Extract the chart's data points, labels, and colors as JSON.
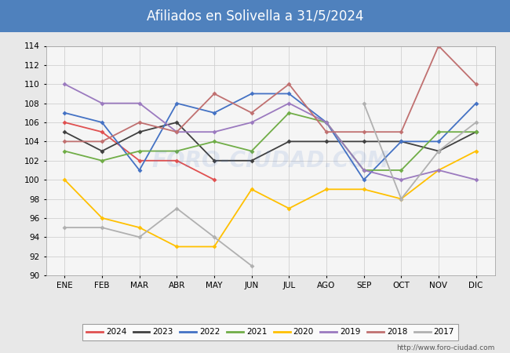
{
  "title": "Afiliados en Solivella a 31/5/2024",
  "title_bg_color": "#4f81bd",
  "title_text_color": "#ffffff",
  "ylim": [
    90,
    114
  ],
  "yticks": [
    90,
    92,
    94,
    96,
    98,
    100,
    102,
    104,
    106,
    108,
    110,
    112,
    114
  ],
  "months": [
    "ENE",
    "FEB",
    "MAR",
    "ABR",
    "MAY",
    "JUN",
    "JUL",
    "AGO",
    "SEP",
    "OCT",
    "NOV",
    "DIC"
  ],
  "series": {
    "2024": {
      "color": "#e05050",
      "data": [
        106,
        105,
        102,
        102,
        100,
        null,
        null,
        null,
        null,
        null,
        null,
        null
      ]
    },
    "2023": {
      "color": "#404040",
      "data": [
        105,
        103,
        105,
        106,
        102,
        102,
        104,
        104,
        104,
        104,
        103,
        105
      ]
    },
    "2022": {
      "color": "#4472c4",
      "data": [
        107,
        106,
        101,
        108,
        107,
        109,
        109,
        106,
        100,
        104,
        104,
        108
      ]
    },
    "2021": {
      "color": "#70ad47",
      "data": [
        103,
        102,
        103,
        103,
        104,
        103,
        107,
        106,
        101,
        101,
        105,
        105
      ]
    },
    "2020": {
      "color": "#ffc000",
      "data": [
        100,
        96,
        95,
        93,
        93,
        99,
        97,
        99,
        99,
        98,
        101,
        103
      ]
    },
    "2019": {
      "color": "#9b7abf",
      "data": [
        110,
        108,
        108,
        105,
        105,
        106,
        108,
        106,
        101,
        100,
        101,
        100
      ]
    },
    "2018": {
      "color": "#c07070",
      "data": [
        104,
        104,
        106,
        105,
        109,
        107,
        110,
        105,
        105,
        105,
        114,
        110
      ]
    },
    "2017": {
      "color": "#b0b0b0",
      "data": [
        95,
        95,
        94,
        97,
        94,
        91,
        null,
        null,
        108,
        98,
        103,
        106
      ]
    }
  },
  "watermark": "FORO-CIUDAD.COM",
  "footer_url": "http://www.foro-ciudad.com",
  "bg_color": "#e8e8e8",
  "plot_bg_color": "#f5f5f5",
  "grid_color": "#d0d0d0"
}
